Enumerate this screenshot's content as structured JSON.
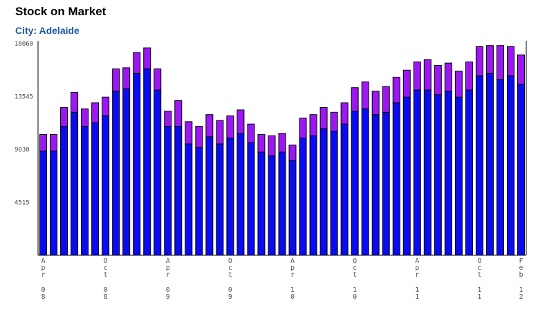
{
  "header": {
    "title": "Stock on Market",
    "subtitle": "City: Adelaide"
  },
  "chart_data": {
    "type": "bar",
    "stacked": true,
    "title": "Stock on Market",
    "subtitle": "City: Adelaide",
    "ylim": [
      0,
      18060
    ],
    "yticks": [
      "18060",
      "13545",
      "9030",
      "4515"
    ],
    "xtick_labels": [
      {
        "index": 0,
        "label": "Apr 08"
      },
      {
        "index": 6,
        "label": "Oct 08"
      },
      {
        "index": 12,
        "label": "Apr 09"
      },
      {
        "index": 18,
        "label": "Oct 09"
      },
      {
        "index": 24,
        "label": "Apr 10"
      },
      {
        "index": 30,
        "label": "Oct 10"
      },
      {
        "index": 36,
        "label": "Apr 11"
      },
      {
        "index": 42,
        "label": "Oct 11"
      },
      {
        "index": 46,
        "label": "Feb 12"
      }
    ],
    "colors": {
      "lower": "#0b0bf0",
      "upper": "#9b19f0",
      "outline": "#000000"
    },
    "series": [
      {
        "values": [
          8900,
          8900,
          11000,
          12200,
          11000,
          11300,
          11900,
          14000,
          14200,
          15500,
          15900,
          14100,
          11000,
          11000,
          9500,
          9200,
          10100,
          9500,
          10000,
          10400,
          9600,
          8800,
          8500,
          8800,
          8100,
          10000,
          10200,
          10800,
          10600,
          11200,
          12300,
          12500,
          12000,
          12200,
          13000,
          13500,
          14100,
          14100,
          13700,
          14000,
          13500,
          14100,
          15300,
          15500,
          15000,
          15300,
          14600
        ]
      },
      {
        "values": [
          1400,
          1400,
          1600,
          1700,
          1500,
          1700,
          1600,
          1900,
          1800,
          1800,
          1800,
          1800,
          1300,
          2200,
          1900,
          1800,
          1900,
          2000,
          1900,
          2000,
          1600,
          1500,
          1700,
          1600,
          1300,
          1700,
          1800,
          1800,
          1600,
          1800,
          2000,
          2300,
          2000,
          2200,
          2200,
          2300,
          2400,
          2600,
          2500,
          2400,
          2200,
          2400,
          2500,
          2400,
          2900,
          2500,
          2500
        ]
      }
    ]
  }
}
